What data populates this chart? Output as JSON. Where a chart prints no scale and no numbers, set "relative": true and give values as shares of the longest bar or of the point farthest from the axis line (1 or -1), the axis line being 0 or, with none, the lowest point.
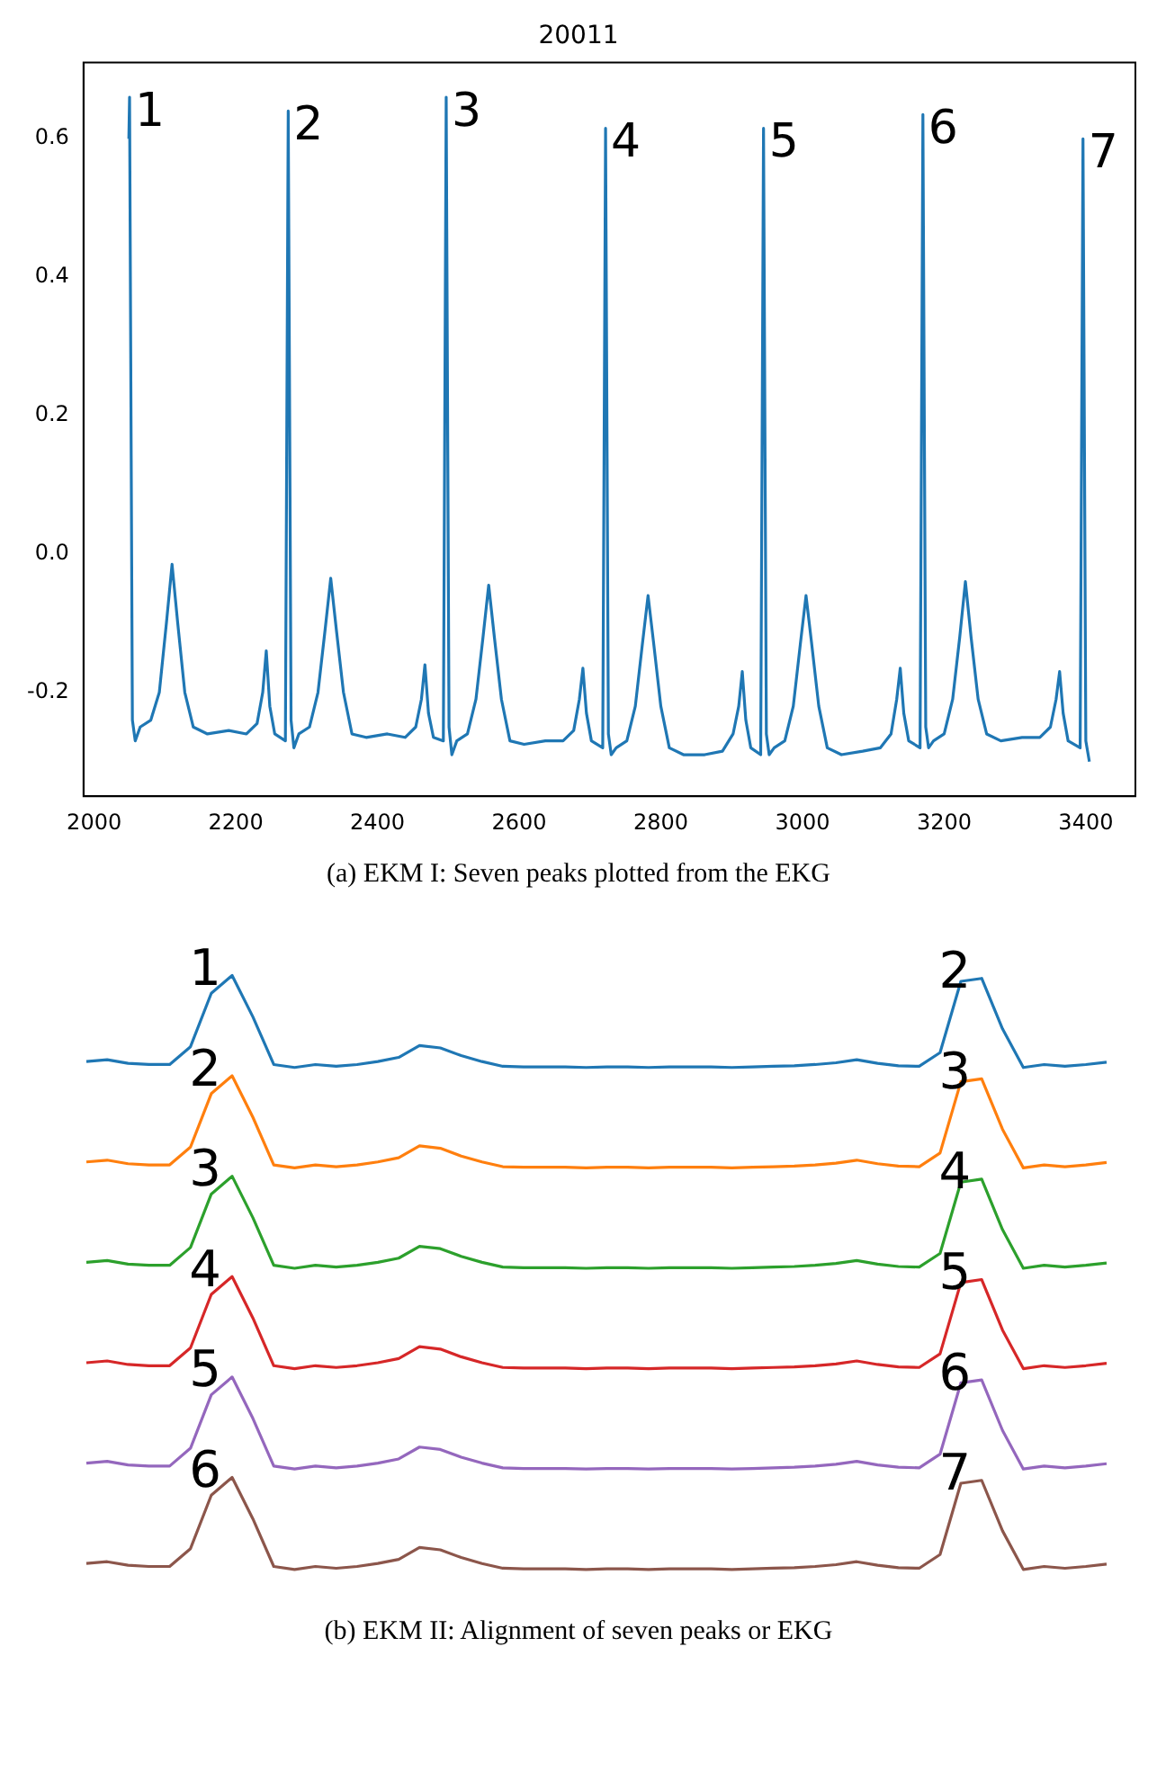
{
  "chart_data": [
    {
      "type": "line",
      "title": "20011",
      "xlim": [
        1985,
        3470
      ],
      "ylim": [
        -0.35,
        0.71
      ],
      "xticks": [
        2000,
        2200,
        2400,
        2600,
        2800,
        3000,
        3200,
        3400
      ],
      "yticks": [
        -0.2,
        {
          "value": 0,
          "label": "0.0"
        },
        0.2,
        0.4,
        0.6
      ],
      "x": [
        2049,
        2050,
        2054,
        2058,
        2065,
        2080,
        2092,
        2102,
        2110,
        2118,
        2128,
        2140,
        2160,
        2190,
        2215,
        2230,
        2238,
        2243,
        2248,
        2255,
        2270,
        2274,
        2278,
        2282,
        2289,
        2304,
        2316,
        2326,
        2334,
        2342,
        2352,
        2364,
        2384,
        2414,
        2439,
        2454,
        2462,
        2467,
        2472,
        2479,
        2493,
        2497,
        2501,
        2505,
        2512,
        2527,
        2539,
        2549,
        2557,
        2565,
        2575,
        2587,
        2607,
        2637,
        2662,
        2677,
        2685,
        2690,
        2695,
        2702,
        2718,
        2722,
        2726,
        2730,
        2737,
        2752,
        2764,
        2774,
        2782,
        2790,
        2800,
        2812,
        2832,
        2862,
        2887,
        2902,
        2910,
        2915,
        2920,
        2927,
        2941,
        2945,
        2949,
        2953,
        2960,
        2975,
        2987,
        2997,
        3005,
        3013,
        3023,
        3035,
        3055,
        3085,
        3110,
        3125,
        3133,
        3138,
        3143,
        3150,
        3166,
        3170,
        3174,
        3178,
        3185,
        3200,
        3212,
        3222,
        3230,
        3238,
        3248,
        3260,
        3280,
        3310,
        3335,
        3350,
        3358,
        3363,
        3368,
        3375,
        3392,
        3396,
        3400,
        3405
      ],
      "series": [
        {
          "color": "#1f77b4",
          "values": [
            0.6,
            0.66,
            -0.24,
            -0.27,
            -0.25,
            -0.24,
            -0.2,
            -0.1,
            -0.015,
            -0.1,
            -0.2,
            -0.25,
            -0.26,
            -0.255,
            -0.26,
            -0.245,
            -0.2,
            -0.14,
            -0.22,
            -0.26,
            -0.27,
            0.64,
            -0.24,
            -0.28,
            -0.26,
            -0.25,
            -0.2,
            -0.11,
            -0.035,
            -0.11,
            -0.2,
            -0.26,
            -0.265,
            -0.26,
            -0.265,
            -0.25,
            -0.21,
            -0.16,
            -0.23,
            -0.265,
            -0.27,
            0.66,
            -0.25,
            -0.29,
            -0.27,
            -0.26,
            -0.21,
            -0.12,
            -0.045,
            -0.12,
            -0.21,
            -0.27,
            -0.275,
            -0.27,
            -0.27,
            -0.255,
            -0.21,
            -0.165,
            -0.23,
            -0.27,
            -0.28,
            0.615,
            -0.26,
            -0.29,
            -0.28,
            -0.27,
            -0.22,
            -0.13,
            -0.06,
            -0.13,
            -0.22,
            -0.28,
            -0.29,
            -0.29,
            -0.285,
            -0.26,
            -0.22,
            -0.17,
            -0.24,
            -0.28,
            -0.29,
            0.615,
            -0.26,
            -0.29,
            -0.28,
            -0.27,
            -0.22,
            -0.13,
            -0.06,
            -0.13,
            -0.22,
            -0.28,
            -0.29,
            -0.285,
            -0.28,
            -0.26,
            -0.21,
            -0.165,
            -0.23,
            -0.27,
            -0.28,
            0.635,
            -0.25,
            -0.28,
            -0.27,
            -0.26,
            -0.21,
            -0.12,
            -0.04,
            -0.12,
            -0.21,
            -0.26,
            -0.27,
            -0.265,
            -0.265,
            -0.25,
            -0.21,
            -0.17,
            -0.23,
            -0.27,
            -0.28,
            0.6,
            -0.27,
            -0.3
          ]
        }
      ],
      "annotations": [
        {
          "text": "1",
          "x": 2050,
          "y": 0.66
        },
        {
          "text": "2",
          "x": 2274,
          "y": 0.64
        },
        {
          "text": "3",
          "x": 2497,
          "y": 0.66
        },
        {
          "text": "4",
          "x": 2722,
          "y": 0.615
        },
        {
          "text": "5",
          "x": 2945,
          "y": 0.615
        },
        {
          "text": "6",
          "x": 3170,
          "y": 0.635
        },
        {
          "text": "7",
          "x": 3396,
          "y": 0.6
        },
        "(a) EKM I: Seven peaks plotted from the EKG"
      ]
    },
    {
      "type": "line",
      "relative": true,
      "categories": [
        null,
        null,
        null,
        null,
        null,
        null,
        null,
        null,
        null,
        null,
        null,
        null,
        null,
        null,
        null,
        null,
        null,
        null,
        null,
        null,
        null,
        null,
        null,
        null,
        null,
        null,
        null,
        null,
        null,
        null,
        null,
        null,
        null,
        null,
        null,
        null,
        null,
        null,
        null,
        null,
        null,
        null,
        null,
        null,
        null,
        null,
        null,
        null,
        null,
        null
      ],
      "series": [
        {
          "color": "#1f77b4",
          "values": [
            0.855,
            0.858,
            0.852,
            0.85,
            0.85,
            0.88,
            0.97,
            1.0,
            0.93,
            0.85,
            0.845,
            0.85,
            0.847,
            0.85,
            0.855,
            0.862,
            0.882,
            0.878,
            0.865,
            0.855,
            0.847,
            0.846,
            0.846,
            0.846,
            0.845,
            0.846,
            0.846,
            0.845,
            0.846,
            0.846,
            0.846,
            0.845,
            0.846,
            0.847,
            0.848,
            0.85,
            0.853,
            0.858,
            0.852,
            0.848,
            0.847,
            0.87,
            0.99,
            0.995,
            0.91,
            0.845,
            0.85,
            0.847,
            0.85,
            0.854
          ]
        },
        {
          "color": "#ff7f0e",
          "values": [
            0.686,
            0.689,
            0.683,
            0.681,
            0.681,
            0.711,
            0.801,
            0.831,
            0.761,
            0.681,
            0.676,
            0.681,
            0.678,
            0.681,
            0.686,
            0.693,
            0.713,
            0.709,
            0.696,
            0.686,
            0.678,
            0.677,
            0.677,
            0.677,
            0.676,
            0.677,
            0.677,
            0.676,
            0.677,
            0.677,
            0.677,
            0.676,
            0.677,
            0.678,
            0.679,
            0.681,
            0.684,
            0.689,
            0.683,
            0.679,
            0.678,
            0.701,
            0.821,
            0.826,
            0.741,
            0.676,
            0.681,
            0.678,
            0.681,
            0.685
          ]
        },
        {
          "color": "#2ca02c",
          "values": [
            0.517,
            0.52,
            0.514,
            0.512,
            0.512,
            0.542,
            0.632,
            0.662,
            0.592,
            0.512,
            0.507,
            0.512,
            0.509,
            0.512,
            0.517,
            0.524,
            0.544,
            0.54,
            0.527,
            0.517,
            0.509,
            0.508,
            0.508,
            0.508,
            0.507,
            0.508,
            0.508,
            0.507,
            0.508,
            0.508,
            0.508,
            0.507,
            0.508,
            0.509,
            0.51,
            0.512,
            0.515,
            0.52,
            0.514,
            0.51,
            0.509,
            0.532,
            0.652,
            0.657,
            0.572,
            0.507,
            0.512,
            0.509,
            0.512,
            0.516
          ]
        },
        {
          "color": "#d62728",
          "values": [
            0.348,
            0.351,
            0.345,
            0.343,
            0.343,
            0.373,
            0.463,
            0.493,
            0.423,
            0.343,
            0.338,
            0.343,
            0.34,
            0.343,
            0.348,
            0.355,
            0.375,
            0.371,
            0.358,
            0.348,
            0.34,
            0.339,
            0.339,
            0.339,
            0.338,
            0.339,
            0.339,
            0.338,
            0.339,
            0.339,
            0.339,
            0.338,
            0.339,
            0.34,
            0.341,
            0.343,
            0.346,
            0.351,
            0.345,
            0.341,
            0.34,
            0.363,
            0.483,
            0.488,
            0.403,
            0.338,
            0.343,
            0.34,
            0.343,
            0.347
          ]
        },
        {
          "color": "#9467bd",
          "values": [
            0.179,
            0.182,
            0.176,
            0.174,
            0.174,
            0.204,
            0.294,
            0.324,
            0.254,
            0.174,
            0.169,
            0.174,
            0.171,
            0.174,
            0.179,
            0.186,
            0.206,
            0.202,
            0.189,
            0.179,
            0.171,
            0.17,
            0.17,
            0.17,
            0.169,
            0.17,
            0.17,
            0.169,
            0.17,
            0.17,
            0.17,
            0.169,
            0.17,
            0.171,
            0.172,
            0.174,
            0.177,
            0.182,
            0.176,
            0.172,
            0.171,
            0.194,
            0.314,
            0.319,
            0.234,
            0.169,
            0.174,
            0.171,
            0.174,
            0.178
          ]
        },
        {
          "color": "#8c564b",
          "values": [
            0.01,
            0.013,
            0.007,
            0.005,
            0.005,
            0.035,
            0.125,
            0.155,
            0.085,
            0.005,
            0.0,
            0.005,
            0.002,
            0.005,
            0.01,
            0.017,
            0.037,
            0.033,
            0.02,
            0.01,
            0.002,
            0.001,
            0.001,
            0.001,
            0.0,
            0.001,
            0.001,
            0.0,
            0.001,
            0.001,
            0.001,
            0.0,
            0.001,
            0.002,
            0.003,
            0.005,
            0.008,
            0.013,
            0.007,
            0.003,
            0.002,
            0.025,
            0.145,
            0.15,
            0.065,
            0.0,
            0.005,
            0.002,
            0.005,
            0.009
          ]
        }
      ],
      "annotations": [
        "1",
        "2",
        "2",
        "3",
        "3",
        "4",
        "4",
        "5",
        "5",
        "6",
        "6",
        "7",
        "(b) EKM II: Alignment of seven peaks or EKG"
      ]
    }
  ]
}
